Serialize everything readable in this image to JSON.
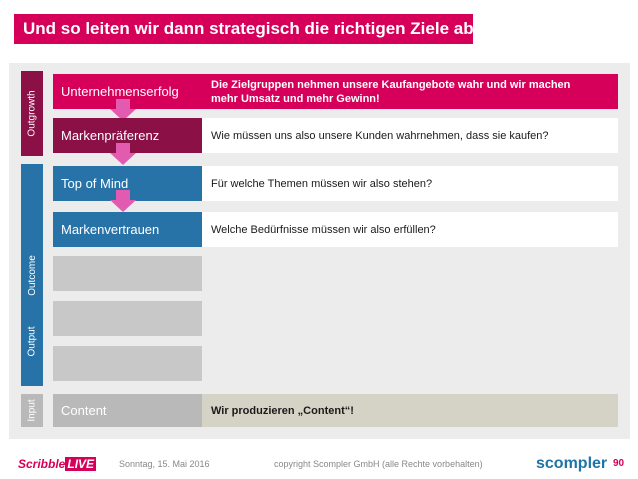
{
  "title": "Und so leiten wir dann strategisch die richtigen Ziele ab!",
  "bands": {
    "outgrowth": "Outgrowth",
    "outcome": "Outcome",
    "output": "Output",
    "input": "Input"
  },
  "rows": [
    {
      "label": "Unternehmenserfolg",
      "desc": "Die Zielgruppen nehmen unsere Kaufangebote wahr und wir machen mehr Umsatz und mehr Gewinn!"
    },
    {
      "label": "Markenpräferenz",
      "desc": "Wie müssen uns also unsere Kunden wahrnehmen, dass sie kaufen?"
    },
    {
      "label": "Top of Mind",
      "desc": "Für welche Themen müssen wir also stehen?"
    },
    {
      "label": "Markenvertrauen",
      "desc": "Welche Bedürfnisse müssen wir also erfüllen?"
    },
    {
      "label": "Content",
      "desc": "Wir produzieren „Content“!"
    }
  ],
  "footer": {
    "date": "Sonntag, 15. Mai 2016",
    "copyright": "copyright Scompler GmbH (alle Rechte vorbehalten)",
    "page": "90",
    "logo_left": "Scribble",
    "logo_left_live": "LIVE",
    "logo_right": "scompler"
  },
  "colors": {
    "magenta": "#d6005a",
    "wine": "#8a1046",
    "blue": "#2773a8",
    "gray_box": "#c8c8c8",
    "input_gray": "#b9b9b9",
    "desc_gray": "#d5d2c6"
  }
}
